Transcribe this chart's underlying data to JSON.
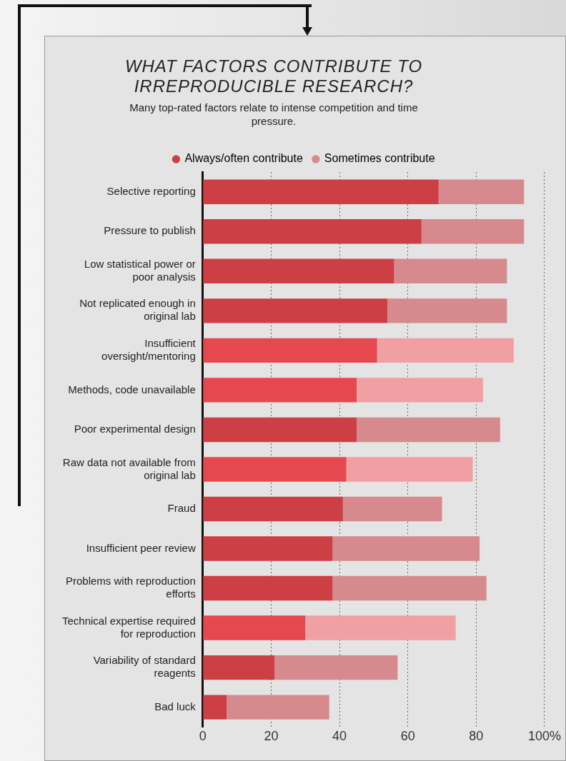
{
  "chart_data": {
    "type": "bar",
    "orientation": "horizontal",
    "stacked": true,
    "title": "WHAT FACTORS CONTRIBUTE TO IRREPRODUCIBLE RESEARCH?",
    "subtitle": "Many top-rated factors relate to intense competition and time pressure.",
    "categories": [
      "Selective reporting",
      "Pressure to publish",
      "Low statistical power or poor analysis",
      "Not replicated enough in original lab",
      "Insufficient oversight/mentoring",
      "Methods, code unavailable",
      "Poor experimental design",
      "Raw data not available from original lab",
      "Fraud",
      "Insufficient peer review",
      "Problems with reproduction efforts",
      "Technical expertise required for reproduction",
      "Variability of standard reagents",
      "Bad luck"
    ],
    "series": [
      {
        "name": "Always/often contribute",
        "color": "#cc3f45",
        "colors": [
          "#cc3f45",
          "#cc3f45",
          "#cc3f45",
          "#cc3f45",
          "#e5484e",
          "#e5484e",
          "#cc3f45",
          "#e5484e",
          "#cc3f45",
          "#cc3f45",
          "#cc3f45",
          "#e5484e",
          "#cc3f45",
          "#cc3f45"
        ],
        "values": [
          69,
          64,
          56,
          54,
          51,
          45,
          45,
          42,
          41,
          38,
          38,
          30,
          21,
          7
        ]
      },
      {
        "name": "Sometimes contribute",
        "color": "#d68a8e",
        "colors": [
          "#d68a8e",
          "#d68a8e",
          "#d68a8e",
          "#d68a8e",
          "#f0a0a3",
          "#f0a0a3",
          "#d68a8e",
          "#f0a0a3",
          "#d68a8e",
          "#d68a8e",
          "#d68a8e",
          "#f0a0a3",
          "#d68a8e",
          "#d68a8e"
        ],
        "values": [
          25,
          30,
          33,
          35,
          40,
          37,
          42,
          37,
          29,
          43,
          45,
          44,
          36,
          30
        ]
      }
    ],
    "xlim": [
      0,
      100
    ],
    "xticks": [
      0,
      20,
      40,
      60,
      80,
      {
        "value": 100,
        "label": "100%"
      }
    ],
    "grid": "x",
    "legend": "top"
  }
}
